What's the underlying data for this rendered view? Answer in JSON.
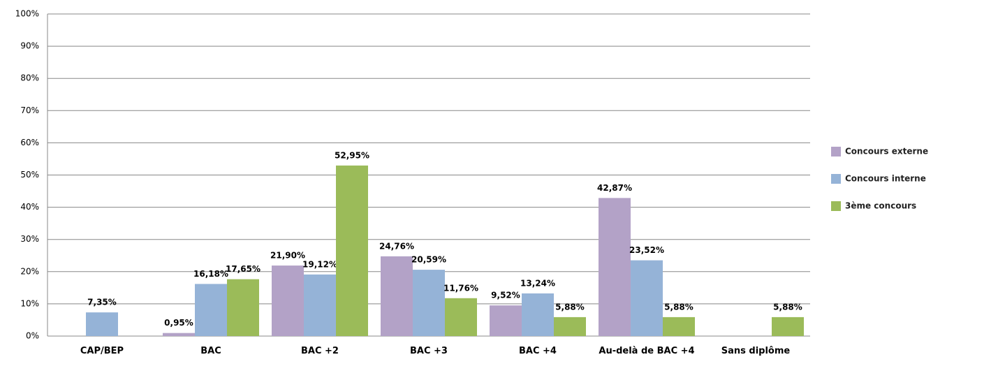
{
  "chart_data": {
    "type": "bar",
    "categories": [
      "CAP/BEP",
      "BAC",
      "BAC +2",
      "BAC +3",
      "BAC +4",
      "Au-delà de BAC +4",
      "Sans diplôme"
    ],
    "series": [
      {
        "name": "Concours externe",
        "color": "#b3a2c7",
        "values": [
          null,
          0.95,
          21.9,
          24.76,
          9.52,
          42.87,
          null
        ],
        "value_labels": [
          null,
          "0,95%",
          "21,90%",
          "24,76%",
          "9,52%",
          "42,87%",
          null
        ]
      },
      {
        "name": "Concours interne",
        "color": "#95b3d7",
        "values": [
          7.35,
          16.18,
          19.12,
          20.59,
          13.24,
          23.52,
          null
        ],
        "value_labels": [
          "7,35%",
          "16,18%",
          "19,12%",
          "20,59%",
          "13,24%",
          "23,52%",
          null
        ]
      },
      {
        "name": "3ème concours",
        "color": "#9bbb59",
        "values": [
          null,
          17.65,
          52.95,
          11.76,
          5.88,
          5.88,
          5.88
        ],
        "value_labels": [
          null,
          "17,65%",
          "52,95%",
          "11,76%",
          "5,88%",
          "5,88%",
          "5,88%"
        ]
      }
    ],
    "ylim": [
      0,
      100
    ],
    "yticks": [
      {
        "value": 0,
        "label": "0%"
      },
      {
        "value": 10,
        "label": "10%"
      },
      {
        "value": 20,
        "label": "20%"
      },
      {
        "value": 30,
        "label": "30%"
      },
      {
        "value": 40,
        "label": "40%"
      },
      {
        "value": 50,
        "label": "50%"
      },
      {
        "value": 60,
        "label": "60%"
      },
      {
        "value": 70,
        "label": "70%"
      },
      {
        "value": 80,
        "label": "80%"
      },
      {
        "value": 90,
        "label": "90%"
      },
      {
        "value": 100,
        "label": "100%"
      }
    ],
    "grid": true,
    "legend": "right"
  }
}
